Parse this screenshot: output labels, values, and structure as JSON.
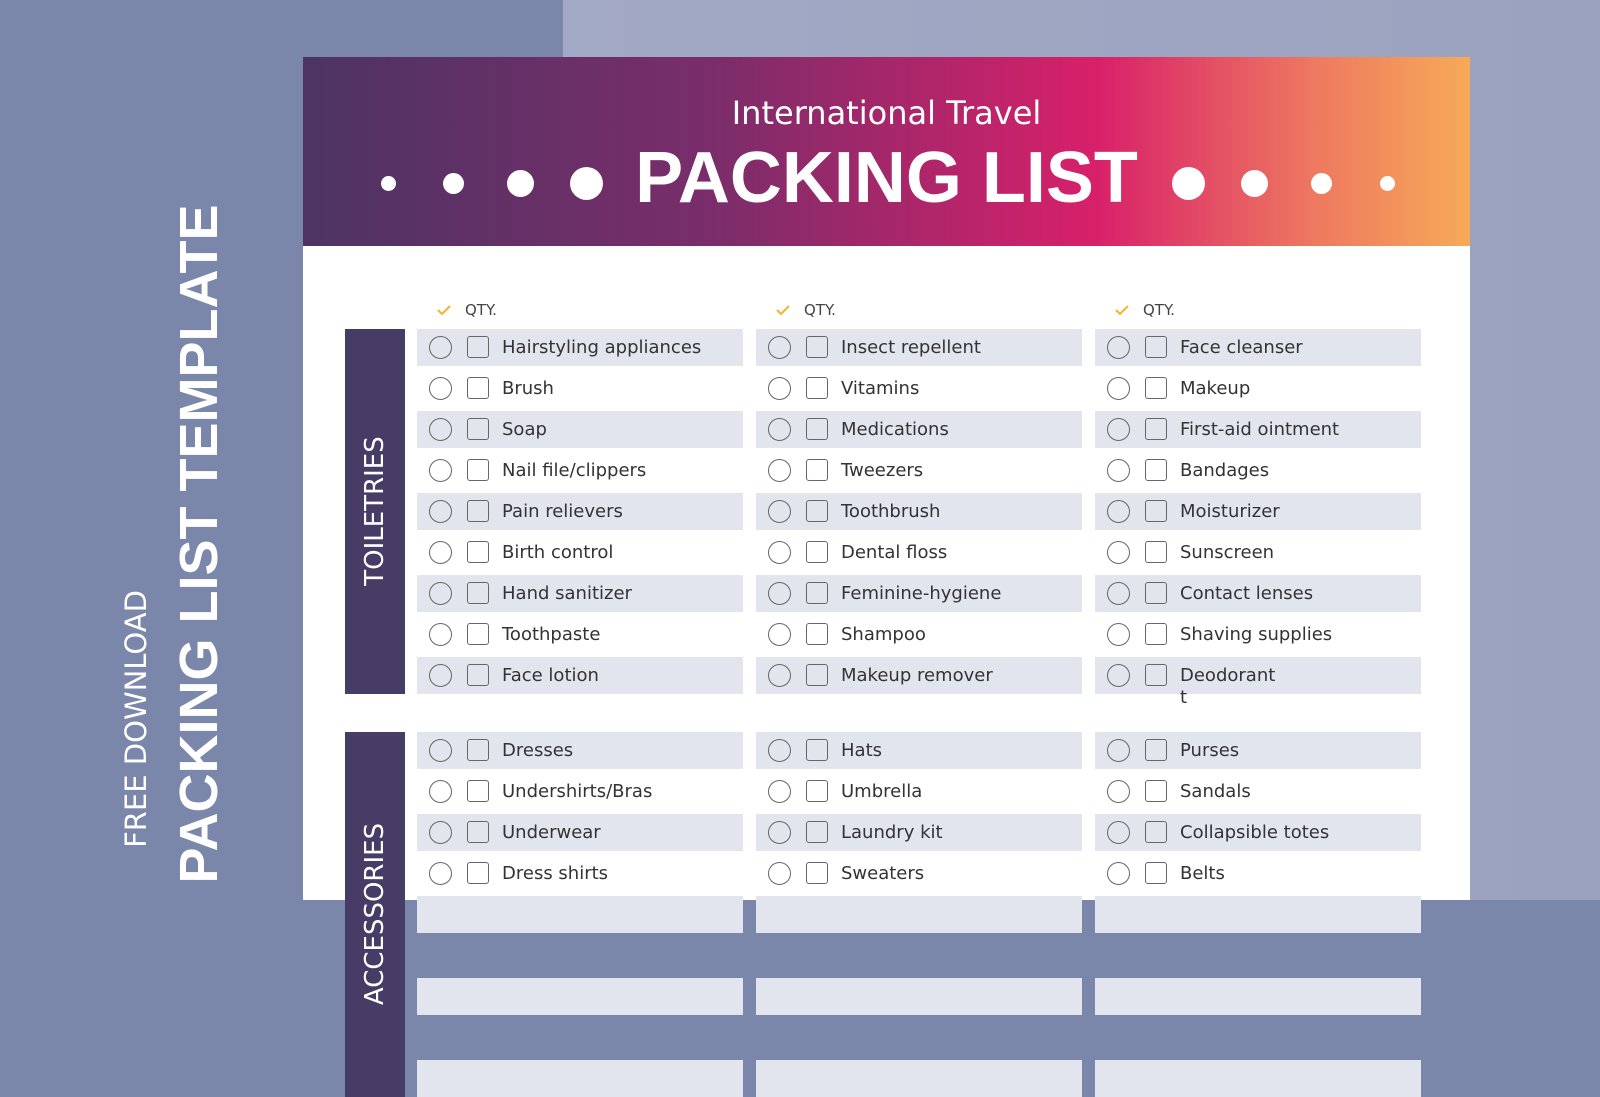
{
  "side": {
    "line1": "FREE DOWNLOAD",
    "line2": "PACKING LIST TEMPLATE"
  },
  "header": {
    "subtitle": "International Travel",
    "title": "PACKING LIST"
  },
  "qty_label": "QTY.",
  "sections": [
    {
      "label": "TOILETRIES",
      "columns": [
        [
          "Hairstyling appliances",
          "Brush",
          "Soap",
          "Nail file/clippers",
          "Pain relievers",
          "Birth control",
          "Hand sanitizer",
          "Toothpaste",
          "Face lotion"
        ],
        [
          "Insect repellent",
          "Vitamins",
          "Medications",
          "Tweezers",
          "Toothbrush",
          "Dental floss",
          "Feminine-hygiene",
          "Shampoo",
          "Makeup remover"
        ],
        [
          "Face cleanser",
          "Makeup",
          "First-aid ointment",
          "Bandages",
          "Moisturizer",
          "Sunscreen",
          "Contact lenses",
          "Shaving supplies",
          "Deodorant\nt"
        ]
      ]
    },
    {
      "label": "ACCESSORIES",
      "columns": [
        [
          "Dresses",
          "Undershirts/Bras",
          "Underwear",
          "Dress shirts"
        ],
        [
          "Hats",
          "Umbrella",
          "Laundry kit",
          "Sweaters"
        ],
        [
          "Purses",
          "Sandals",
          "Collapsible totes",
          "Belts"
        ]
      ]
    }
  ]
}
